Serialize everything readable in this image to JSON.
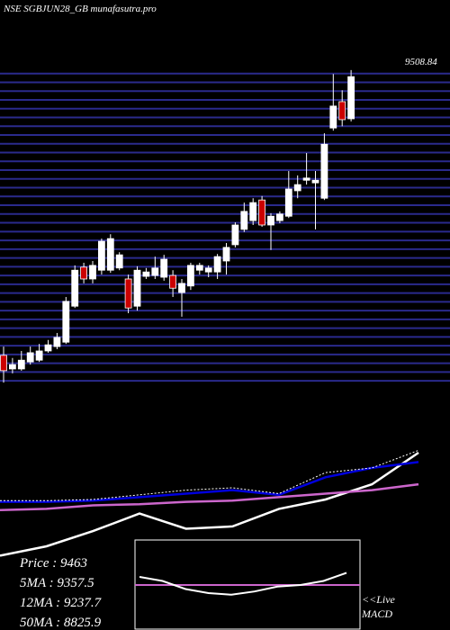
{
  "header": {
    "title": "NSE SGBJUN28_GB munafasutra.pro"
  },
  "chart_data": [
    {
      "type": "candlestick",
      "top_label": "9508.84",
      "ylim": [
        8790,
        9520
      ],
      "levels": [
        8800,
        8820,
        8840,
        8860,
        8880,
        8900,
        8920,
        8940,
        8960,
        8980,
        9000,
        9020,
        9040,
        9060,
        9080,
        9100,
        9120,
        9140,
        9160,
        9180,
        9200,
        9220,
        9240,
        9260,
        9280,
        9300,
        9320,
        9340,
        9360,
        9380,
        9400,
        9420,
        9440,
        9460,
        9480,
        9500
      ],
      "level_color": "#2a2a8c",
      "up_color": "#ffffff",
      "down_color": "#cc0000",
      "open": [
        8858,
        8827,
        8827,
        8843,
        8847,
        8868,
        8878,
        8888,
        8970,
        9059,
        9032,
        9052,
        9052,
        9057,
        9032,
        8970,
        9038,
        9040,
        9036,
        9040,
        9001,
        9016,
        9052,
        9048,
        9048,
        9073,
        9110,
        9145,
        9165,
        9212,
        9155,
        9165,
        9175,
        9233,
        9257,
        9251,
        9216,
        9376,
        9436,
        9397
      ],
      "high": [
        8878,
        8852,
        8868,
        8878,
        8884,
        8893,
        8909,
        8991,
        9063,
        9069,
        9073,
        9124,
        9134,
        9093,
        9042,
        9061,
        9057,
        9083,
        9087,
        9052,
        9032,
        9069,
        9069,
        9063,
        9089,
        9114,
        9161,
        9206,
        9216,
        9221,
        9182,
        9186,
        9278,
        9268,
        9319,
        9278,
        9364,
        9499,
        9462,
        9508
      ],
      "low": [
        8796,
        8817,
        8823,
        8837,
        8843,
        8864,
        8872,
        8884,
        8966,
        9022,
        9022,
        9042,
        9046,
        9052,
        8954,
        8960,
        9032,
        9032,
        9028,
        8991,
        8946,
        9007,
        9042,
        9036,
        9032,
        9042,
        9104,
        9139,
        9155,
        9151,
        9098,
        9159,
        9171,
        9216,
        9247,
        9145,
        9212,
        9370,
        9380,
        9391
      ],
      "close": [
        8823,
        8837,
        8847,
        8864,
        8868,
        8882,
        8899,
        8981,
        9052,
        9032,
        9063,
        9118,
        9124,
        9087,
        8966,
        9052,
        9048,
        9057,
        9077,
        9011,
        9022,
        9063,
        9063,
        9057,
        9083,
        9104,
        9155,
        9186,
        9206,
        9155,
        9175,
        9180,
        9237,
        9247,
        9262,
        9257,
        9339,
        9426,
        9395,
        9493
      ]
    },
    {
      "type": "line",
      "ylim": [
        0,
        100
      ],
      "series": [
        {
          "color": "#ffffff",
          "values": [
            2,
            10,
            23,
            38,
            25,
            27,
            42,
            50,
            63,
            90
          ]
        },
        {
          "color": "#0000dd",
          "values": [
            48,
            48,
            49,
            52,
            55,
            58,
            54,
            69,
            77,
            82
          ]
        },
        {
          "color": "#cc66cc",
          "values": [
            41,
            42,
            45,
            46,
            48,
            49,
            52,
            55,
            58,
            63
          ]
        },
        {
          "color": "#ffffff",
          "dashed": true,
          "values": [
            49,
            49,
            50,
            54,
            58,
            60,
            55,
            73,
            77,
            92
          ]
        }
      ]
    },
    {
      "type": "macd",
      "ylim": [
        0,
        100
      ],
      "label": "<<Live",
      "sublabel": "MACD",
      "signal": {
        "color": "#cc66cc",
        "value": 50
      },
      "series": [
        {
          "color": "#ffffff",
          "values": [
            60,
            55,
            45,
            40,
            38,
            42,
            48,
            50,
            55,
            65
          ]
        }
      ]
    }
  ],
  "stats": [
    "Price   :  9463",
    "5MA : 9357.5",
    "12MA : 9237.7",
    "50MA : 8825.9"
  ]
}
